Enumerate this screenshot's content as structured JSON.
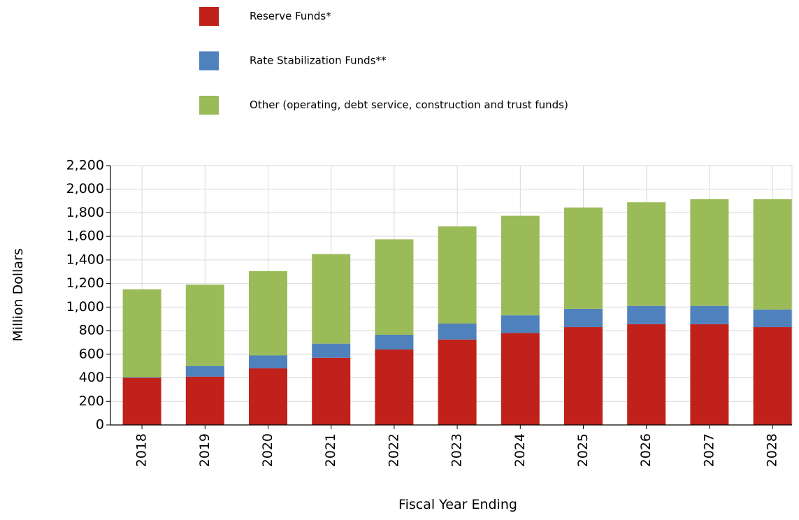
{
  "chart_data": {
    "type": "stacked-bar",
    "categories": [
      "2018",
      "2019",
      "2020",
      "2021",
      "2022",
      "2023",
      "2024",
      "2025",
      "2026",
      "2027",
      "2028"
    ],
    "series": [
      {
        "name": "Reserve Funds*",
        "color": "#c0211a",
        "values": [
          400,
          410,
          480,
          570,
          640,
          725,
          780,
          830,
          855,
          855,
          830
        ]
      },
      {
        "name": "Rate Stabilization Funds**",
        "color": "#4f81bd",
        "values": [
          5,
          90,
          110,
          120,
          125,
          135,
          150,
          155,
          155,
          155,
          150
        ]
      },
      {
        "name": "Other (operating, debt service, construction and trust funds)",
        "color": "#9bbb59",
        "values": [
          745,
          690,
          715,
          760,
          810,
          825,
          845,
          860,
          880,
          905,
          935
        ]
      }
    ],
    "xlabel": "Fiscal Year Ending",
    "ylabel": "Million Dollars",
    "ylim": [
      0,
      2200
    ],
    "yticks": [
      0,
      200,
      400,
      600,
      800,
      {
        "value": 1000,
        "label": "1,000"
      },
      {
        "value": 1200,
        "label": "1,200"
      },
      {
        "value": 1400,
        "label": "1,400"
      },
      {
        "value": 1600,
        "label": "1,600"
      },
      {
        "value": 1800,
        "label": "1,800"
      },
      {
        "value": 2000,
        "label": "2,000"
      },
      {
        "value": 2200,
        "label": "2,200"
      }
    ],
    "grid": true
  }
}
